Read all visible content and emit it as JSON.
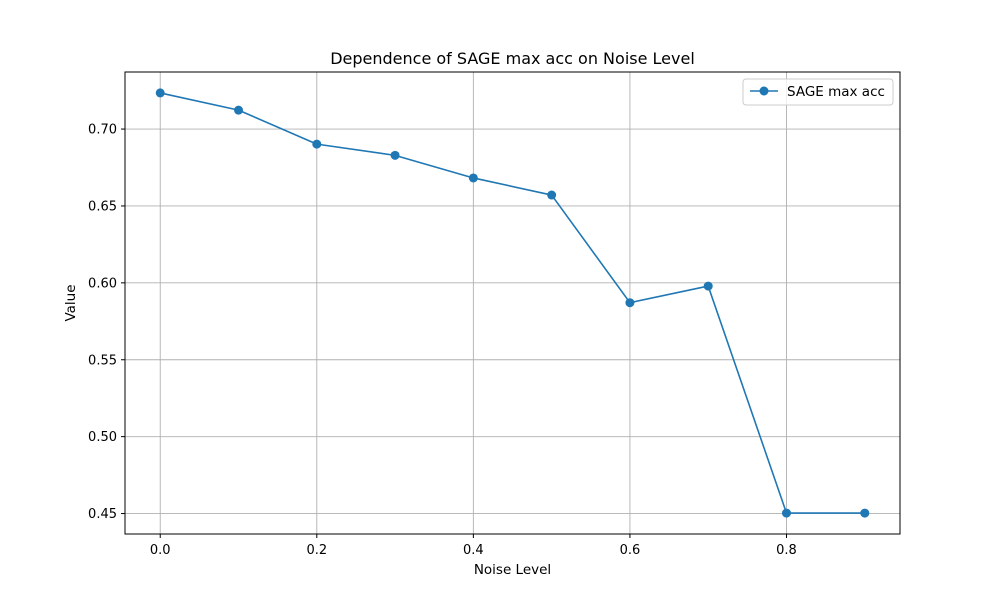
{
  "chart_data": {
    "type": "line",
    "title": "Dependence of SAGE max acc on Noise Level",
    "xlabel": "Noise Level",
    "ylabel": "Value",
    "x": [
      0.0,
      0.1,
      0.2,
      0.3,
      0.4,
      0.5,
      0.6,
      0.7,
      0.8,
      0.9
    ],
    "series": [
      {
        "name": "SAGE max acc",
        "values": [
          0.7235,
          0.7123,
          0.6902,
          0.6829,
          0.6682,
          0.6571,
          0.5871,
          0.5979,
          0.4503,
          0.4503
        ],
        "color": "#1f77b4",
        "marker": "circle"
      }
    ],
    "xlim": [
      -0.045,
      0.945
    ],
    "ylim": [
      0.4367,
      0.7371
    ],
    "xticks": [
      0.0,
      0.2,
      0.4,
      0.6,
      0.8
    ],
    "xtick_labels": [
      "0.0",
      "0.2",
      "0.4",
      "0.6",
      "0.8"
    ],
    "yticks": [
      0.45,
      0.5,
      0.55,
      0.6,
      0.65,
      0.7
    ],
    "ytick_labels": [
      "0.45",
      "0.50",
      "0.55",
      "0.60",
      "0.65",
      "0.70"
    ],
    "grid": true,
    "legend_position": "top-right"
  }
}
